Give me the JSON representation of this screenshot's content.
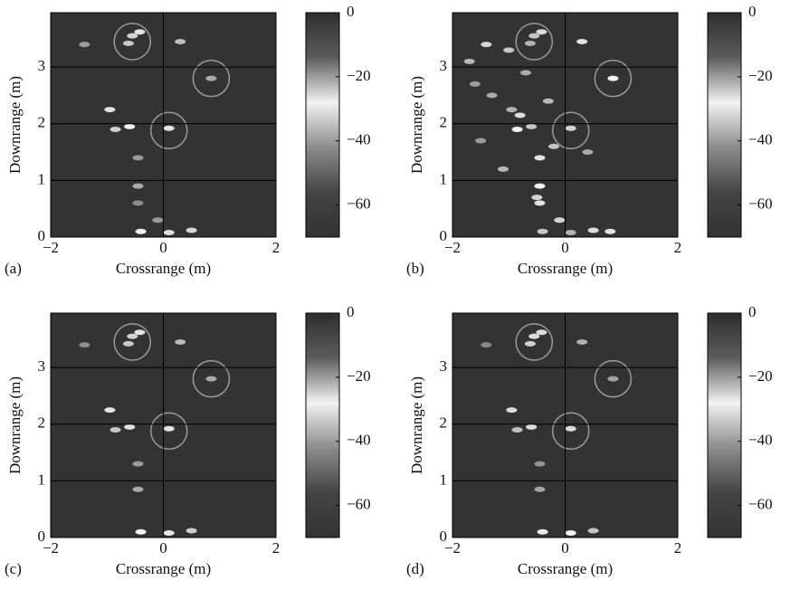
{
  "chart_data": [
    {
      "type": "image",
      "panel_label": "(a)",
      "xlabel": "Crossrange (m)",
      "ylabel": "Downrange (m)",
      "xlim": [
        -2,
        2
      ],
      "ylim": [
        0,
        3.96
      ],
      "xticks": [
        {
          "value": -2,
          "label": "−2"
        },
        0,
        2
      ],
      "yticks": [
        0,
        1,
        2,
        3
      ],
      "grid": true,
      "clim": [
        -70,
        0
      ],
      "cticks": [
        0,
        {
          "value": -20,
          "label": "−20"
        },
        {
          "value": -40,
          "label": "−40"
        },
        {
          "value": -60,
          "label": "−60"
        }
      ],
      "colormap": [
        "#2e2e2e",
        "#5c5c5c",
        "#f2f2f2",
        "#8c8c8c",
        "#444444",
        "#333333"
      ],
      "x": [
        -0.55,
        -0.62,
        -0.42,
        0.3,
        -1.4,
        0.85,
        -0.95,
        -0.6,
        -0.85,
        0.1,
        -0.45,
        -0.45,
        -0.45,
        -0.4,
        0.1,
        0.5,
        -0.1
      ],
      "y": [
        3.55,
        3.42,
        3.62,
        3.45,
        3.4,
        2.8,
        2.25,
        1.95,
        1.9,
        1.92,
        1.4,
        0.9,
        0.6,
        0.1,
        0.08,
        0.12,
        0.3
      ],
      "values": [
        -25,
        -24,
        -30,
        -35,
        -40,
        -38,
        -30,
        -28,
        -33,
        -30,
        -40,
        -38,
        -42,
        -28,
        -26,
        -32,
        -40
      ],
      "circles": {
        "x": [
          -0.55,
          0.85,
          0.1
        ],
        "y": [
          3.45,
          2.8,
          1.88
        ],
        "r": [
          0.32,
          0.32,
          0.32
        ]
      }
    },
    {
      "type": "image",
      "panel_label": "(b)",
      "xlabel": "Crossrange (m)",
      "ylabel": "Downrange (m)",
      "xlim": [
        -2,
        2
      ],
      "ylim": [
        0,
        3.96
      ],
      "xticks": [
        {
          "value": -2,
          "label": "−2"
        },
        0,
        2
      ],
      "yticks": [
        0,
        1,
        2,
        3
      ],
      "grid": true,
      "clim": [
        -70,
        0
      ],
      "cticks": [
        0,
        {
          "value": -20,
          "label": "−20"
        },
        {
          "value": -40,
          "label": "−40"
        },
        {
          "value": -60,
          "label": "−60"
        }
      ],
      "colormap": [
        "#2e2e2e",
        "#5c5c5c",
        "#f2f2f2",
        "#8c8c8c",
        "#444444",
        "#333333"
      ],
      "x": [
        -0.55,
        -0.62,
        -0.42,
        0.3,
        -1.4,
        -1.7,
        -1.0,
        0.85,
        -0.95,
        -0.8,
        -0.6,
        -0.85,
        0.1,
        -1.3,
        -1.6,
        -0.45,
        -0.2,
        -0.45,
        -0.5,
        -0.45,
        -0.4,
        0.1,
        0.5,
        0.8,
        -0.1,
        -1.1,
        -0.3,
        0.4,
        -1.5,
        -0.7
      ],
      "y": [
        3.55,
        3.42,
        3.62,
        3.45,
        3.4,
        3.1,
        3.3,
        2.8,
        2.25,
        2.15,
        1.95,
        1.9,
        1.92,
        2.5,
        2.7,
        1.4,
        1.6,
        0.9,
        0.7,
        0.6,
        0.1,
        0.08,
        0.12,
        0.1,
        0.3,
        1.2,
        2.4,
        1.5,
        1.7,
        2.9
      ],
      "values": [
        -24,
        -22,
        -26,
        -30,
        -32,
        -36,
        -34,
        -28,
        -22,
        -26,
        -24,
        -28,
        -25,
        -38,
        -40,
        -30,
        -34,
        -28,
        -32,
        -30,
        -24,
        -22,
        -26,
        -30,
        -32,
        -36,
        -36,
        -38,
        -40,
        -38
      ],
      "circles": {
        "x": [
          -0.55,
          0.85,
          0.1
        ],
        "y": [
          3.45,
          2.8,
          1.88
        ],
        "r": [
          0.32,
          0.32,
          0.32
        ]
      }
    },
    {
      "type": "image",
      "panel_label": "(c)",
      "xlabel": "Crossrange (m)",
      "ylabel": "Downrange (m)",
      "xlim": [
        -2,
        2
      ],
      "ylim": [
        0,
        3.96
      ],
      "xticks": [
        {
          "value": -2,
          "label": "−2"
        },
        0,
        2
      ],
      "yticks": [
        0,
        1,
        2,
        3
      ],
      "grid": true,
      "clim": [
        -70,
        0
      ],
      "cticks": [
        0,
        {
          "value": -20,
          "label": "−20"
        },
        {
          "value": -40,
          "label": "−40"
        },
        {
          "value": -60,
          "label": "−60"
        }
      ],
      "colormap": [
        "#2e2e2e",
        "#5c5c5c",
        "#f2f2f2",
        "#8c8c8c",
        "#444444",
        "#333333"
      ],
      "x": [
        -0.55,
        -0.62,
        -0.42,
        0.3,
        -1.4,
        0.85,
        -0.95,
        -0.6,
        -0.85,
        0.1,
        -0.45,
        -0.45,
        -0.4,
        0.1,
        0.5
      ],
      "y": [
        3.55,
        3.42,
        3.62,
        3.45,
        3.4,
        2.8,
        2.25,
        1.95,
        1.9,
        1.92,
        1.3,
        0.85,
        0.1,
        0.08,
        0.12
      ],
      "values": [
        -25,
        -24,
        -30,
        -36,
        -42,
        -38,
        -30,
        -30,
        -34,
        -30,
        -40,
        -38,
        -28,
        -27,
        -33
      ],
      "circles": {
        "x": [
          -0.55,
          0.85,
          0.1
        ],
        "y": [
          3.45,
          2.8,
          1.88
        ],
        "r": [
          0.32,
          0.32,
          0.32
        ]
      }
    },
    {
      "type": "image",
      "panel_label": "(d)",
      "xlabel": "Crossrange (m)",
      "ylabel": "Downrange (m)",
      "xlim": [
        -2,
        2
      ],
      "ylim": [
        0,
        3.96
      ],
      "xticks": [
        {
          "value": -2,
          "label": "−2"
        },
        0,
        2
      ],
      "yticks": [
        0,
        1,
        2,
        3
      ],
      "grid": true,
      "clim": [
        -70,
        0
      ],
      "cticks": [
        0,
        {
          "value": -20,
          "label": "−20"
        },
        {
          "value": -40,
          "label": "−40"
        },
        {
          "value": -60,
          "label": "−60"
        }
      ],
      "colormap": [
        "#2e2e2e",
        "#5c5c5c",
        "#f2f2f2",
        "#8c8c8c",
        "#444444",
        "#333333"
      ],
      "x": [
        -0.55,
        -0.62,
        -0.42,
        0.3,
        -1.4,
        0.85,
        -0.95,
        -0.6,
        -0.85,
        0.1,
        -0.45,
        -0.45,
        -0.4,
        0.1,
        0.5
      ],
      "y": [
        3.55,
        3.42,
        3.62,
        3.45,
        3.4,
        2.8,
        2.25,
        1.95,
        1.9,
        1.92,
        1.3,
        0.85,
        0.1,
        0.08,
        0.12
      ],
      "values": [
        -26,
        -25,
        -31,
        -37,
        -43,
        -39,
        -31,
        -31,
        -35,
        -31,
        -41,
        -39,
        -29,
        -28,
        -34
      ],
      "circles": {
        "x": [
          -0.55,
          0.85,
          0.1
        ],
        "y": [
          3.45,
          2.8,
          1.88
        ],
        "r": [
          0.32,
          0.32,
          0.32
        ]
      }
    }
  ]
}
